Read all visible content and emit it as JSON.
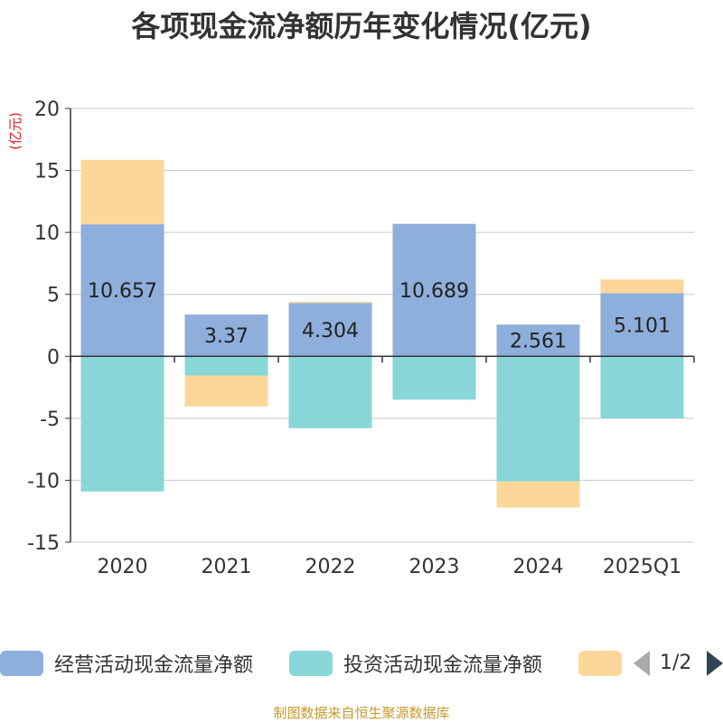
{
  "chart_data": {
    "type": "bar",
    "stacked": true,
    "title": "各项现金流净额历年变化情况(亿元)",
    "ylabel": "(亿元)",
    "xlabel": "",
    "ylim": [
      -15,
      20
    ],
    "yticks": [
      -15,
      -10,
      -5,
      0,
      5,
      10,
      15,
      20
    ],
    "categories": [
      "2020",
      "2021",
      "2022",
      "2023",
      "2024",
      "2025Q1"
    ],
    "series": [
      {
        "name": "经营活动现金流量净额",
        "color": "#8eaedb",
        "values": [
          10.657,
          3.37,
          4.304,
          10.689,
          2.561,
          5.101
        ],
        "labels": [
          "10.657",
          "3.37",
          "4.304",
          "10.689",
          "2.561",
          "5.101"
        ]
      },
      {
        "name": "投资活动现金流量净额",
        "color": "#88d6d8",
        "values": [
          -10.9,
          -1.55,
          -5.8,
          -3.5,
          -10.1,
          -5.0
        ]
      },
      {
        "name": "",
        "color": "#fdd799",
        "values": [
          5.2,
          -2.5,
          0.1,
          0.0,
          -2.1,
          1.1
        ]
      }
    ],
    "legend_position": "bottom",
    "grid": true
  },
  "legend": {
    "items": [
      {
        "label": "经营活动现金流量净额",
        "color": "#8eaedb"
      },
      {
        "label": "投资活动现金流量净额",
        "color": "#88d6d8"
      },
      {
        "label": "",
        "color": "#fdd799"
      }
    ],
    "page": "1/2"
  },
  "source": "制图数据来自恒生聚源数据库"
}
